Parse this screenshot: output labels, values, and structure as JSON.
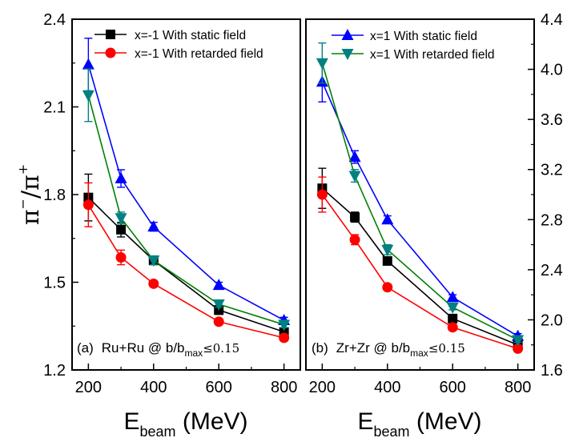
{
  "chart_data": [
    {
      "type": "line",
      "panel": "(a)",
      "system": "Ru+Ru",
      "condition": "b/bmax≤0.15",
      "xlabel": "E_beam (MeV)",
      "ylabel": "π⁻/π⁺",
      "xlim": [
        150,
        850
      ],
      "ylim": [
        1.2,
        2.4
      ],
      "x_ticks": [
        200,
        400,
        600,
        800
      ],
      "y_ticks": [
        1.2,
        1.5,
        1.8,
        2.1,
        2.4
      ],
      "legend_position": "top-right",
      "series": [
        {
          "name": "x=-1 With static field",
          "color": "#000000",
          "marker": "square",
          "x": [
            200,
            300,
            400,
            600,
            800
          ],
          "y": [
            1.79,
            1.68,
            1.575,
            1.405,
            1.33
          ],
          "err": [
            0.08,
            0.025,
            0.015,
            0.015,
            0.01
          ]
        },
        {
          "name": "x=-1 With retarded field",
          "color": "#ff0000",
          "marker": "circle",
          "x": [
            200,
            300,
            400,
            600,
            800
          ],
          "y": [
            1.765,
            1.585,
            1.495,
            1.365,
            1.31
          ],
          "err": [
            0.075,
            0.025,
            0.01,
            0.01,
            0.01
          ]
        },
        {
          "name": "x=1  With static field",
          "color": "#0000ff",
          "marker": "triangle-up",
          "x": [
            200,
            300,
            400,
            600,
            800
          ],
          "y": [
            2.245,
            1.855,
            1.69,
            1.49,
            1.37
          ],
          "err": [
            0.09,
            0.03,
            0.015,
            0.01,
            0.01
          ]
        },
        {
          "name": "x=1  With retarded field",
          "color": "#008000",
          "marker": "triangle-down",
          "x": [
            200,
            300,
            400,
            600,
            800
          ],
          "y": [
            2.14,
            1.72,
            1.575,
            1.425,
            1.355
          ],
          "err": [
            0.09,
            0.02,
            0.015,
            0.01,
            0.01
          ]
        }
      ]
    },
    {
      "type": "line",
      "panel": "(b)",
      "system": "Zr+Zr",
      "condition": "b/bmax≤0.15",
      "xlabel": "E_beam (MeV)",
      "ylim": [
        1.6,
        4.4
      ],
      "xlim": [
        150,
        850
      ],
      "x_ticks": [
        200,
        400,
        600,
        800
      ],
      "y_ticks": [
        1.6,
        2.0,
        2.4,
        2.8,
        3.2,
        3.6,
        4.0,
        4.4
      ],
      "legend_position": "top-right",
      "series": [
        {
          "name": "x=-1 With static field",
          "color": "#000000",
          "marker": "square",
          "x": [
            200,
            300,
            400,
            600,
            800
          ],
          "y": [
            3.05,
            2.82,
            2.47,
            2.01,
            1.8
          ],
          "err": [
            0.16,
            0.04,
            0.03,
            0.02,
            0.02
          ]
        },
        {
          "name": "x=-1 With retarded field",
          "color": "#ff0000",
          "marker": "circle",
          "x": [
            200,
            300,
            400,
            600,
            800
          ],
          "y": [
            3.0,
            2.64,
            2.26,
            1.94,
            1.77
          ],
          "err": [
            0.14,
            0.04,
            0.02,
            0.02,
            0.02
          ]
        },
        {
          "name": "x=1  With static field",
          "color": "#0000ff",
          "marker": "triangle-up",
          "x": [
            200,
            300,
            400,
            600,
            800
          ],
          "y": [
            3.9,
            3.3,
            2.8,
            2.18,
            1.87
          ],
          "err": [
            0.16,
            0.05,
            0.03,
            0.02,
            0.02
          ]
        },
        {
          "name": "x=1  With retarded field",
          "color": "#008000",
          "marker": "triangle-down",
          "x": [
            200,
            300,
            400,
            600,
            800
          ],
          "y": [
            4.05,
            3.15,
            2.56,
            2.1,
            1.84
          ],
          "err": [
            0.16,
            0.05,
            0.04,
            0.02,
            0.02
          ]
        }
      ]
    }
  ],
  "text": {
    "x_tick_labels": [
      "200",
      "400",
      "600",
      "800"
    ],
    "left_y_tick_labels": [
      "1.2",
      "1.5",
      "1.8",
      "2.1",
      "2.4"
    ],
    "right_y_tick_labels": [
      "1.6",
      "2.0",
      "2.4",
      "2.8",
      "3.2",
      "3.6",
      "4.0",
      "4.4"
    ],
    "xlabel_main": "E",
    "xlabel_sub": "beam",
    "xlabel_unit": " (MeV)",
    "ylabel_pi": "π",
    "ylabel_slash": "/",
    "ylabel_minus": "−",
    "ylabel_plus": "+",
    "panel_a_prefix": "(a)",
    "panel_a_system": "Ru+Ru @ b/b",
    "panel_b_prefix": "(b)",
    "panel_b_system": "Zr+Zr @ b/b",
    "panel_sub": "max",
    "panel_cond": "≤0.15",
    "legend_a": [
      "x=-1 With static field",
      "x=-1 With retarded field"
    ],
    "legend_b": [
      "x=1  With static field",
      "x=1  With retarded field"
    ]
  }
}
